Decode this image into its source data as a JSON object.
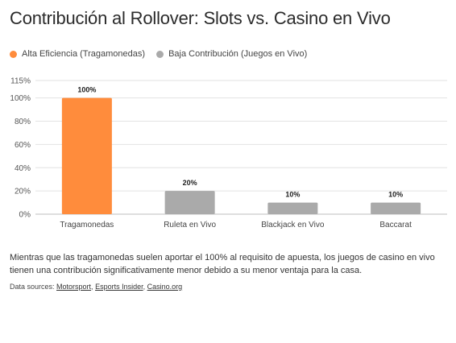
{
  "title": "Contribución al Rollover: Slots vs. Casino en Vivo",
  "legend": [
    {
      "label": "Alta Eficiencia (Tragamonedas)",
      "color": "#ff8c3c"
    },
    {
      "label": "Baja Contribución (Juegos en Vivo)",
      "color": "#aaaaaa"
    }
  ],
  "chart_data": {
    "type": "bar",
    "title": "Contribución al Rollover: Slots vs. Casino en Vivo",
    "categories": [
      "Tragamonedas",
      "Ruleta en Vivo",
      "Blackjack en Vivo",
      "Baccarat"
    ],
    "values": [
      100,
      20,
      10,
      10
    ],
    "data_labels": [
      "100%",
      "20%",
      "10%",
      "10%"
    ],
    "bar_colors": [
      "#ff8c3c",
      "#aaaaaa",
      "#aaaaaa",
      "#aaaaaa"
    ],
    "yticks": [
      0,
      20,
      40,
      60,
      80,
      100,
      115
    ],
    "ytick_labels": [
      "0%",
      "20%",
      "40%",
      "60%",
      "80%",
      "100%",
      "115%"
    ],
    "ylim": [
      0,
      115
    ],
    "xlabel": "",
    "ylabel": "",
    "grid": true,
    "legend_position": "top-left"
  },
  "caption": "Mientras que las tragamonedas suelen aportar el 100% al requisito de apuesta, los juegos de casino en vivo tienen una contribución significativamente menor debido a su menor ventaja para la casa.",
  "sources": {
    "prefix": "Data sources: ",
    "links": [
      "Motorsport",
      "Esports Insider",
      "Casino.org"
    ]
  }
}
